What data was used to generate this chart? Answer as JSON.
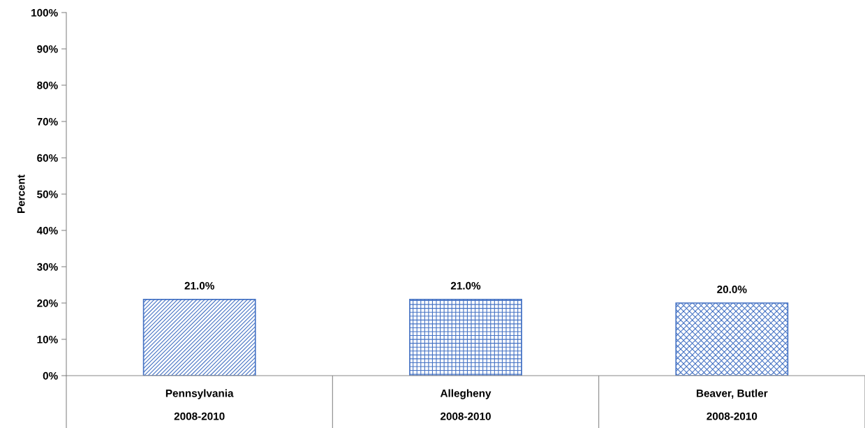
{
  "chart_data": {
    "type": "bar",
    "ylabel": "Percent",
    "categories": [
      "Pennsylvania\n\n2008-2010",
      "Allegheny\n\n2008-2010",
      "Beaver, Butler\n\n2008-2010"
    ],
    "values": [
      21.0,
      21.0,
      20.0
    ],
    "value_labels": [
      "21.0%",
      "21.0%",
      "20.0%"
    ],
    "color": "#4472c4",
    "ylim": [
      0,
      100
    ],
    "yticks": [
      {
        "value": 0,
        "label": "0%"
      },
      {
        "value": 10,
        "label": "10%"
      },
      {
        "value": 20,
        "label": "20%"
      },
      {
        "value": 30,
        "label": "30%"
      },
      {
        "value": 40,
        "label": "40%"
      },
      {
        "value": 50,
        "label": "50%"
      },
      {
        "value": 60,
        "label": "60%"
      },
      {
        "value": 70,
        "label": "70%"
      },
      {
        "value": 80,
        "label": "80%"
      },
      {
        "value": 90,
        "label": "90%"
      },
      {
        "value": 100,
        "label": "100%"
      }
    ],
    "grid": false,
    "legend": false
  }
}
